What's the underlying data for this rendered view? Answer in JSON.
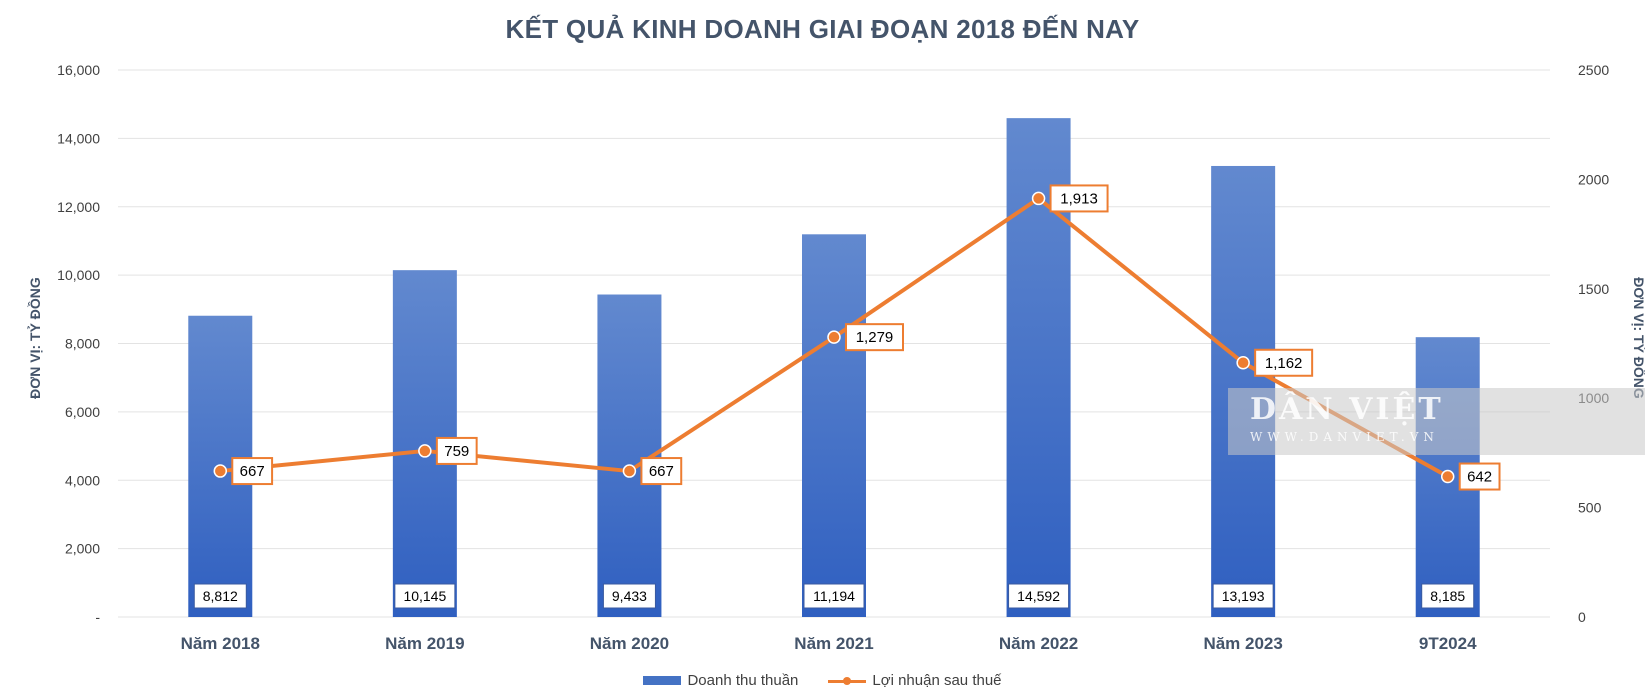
{
  "chart_data": {
    "type": "bar",
    "title": "KẾT QUẢ KINH DOANH GIAI ĐOẠN 2018 ĐẾN NAY",
    "ylabel": "ĐƠN VỊ: TỶ ĐỒNG",
    "y2label": "ĐƠN VỊ: TỶ ĐỒNG",
    "categories": [
      "Năm 2018",
      "Năm 2019",
      "Năm 2020",
      "Năm 2021",
      "Năm 2022",
      "Năm 2023",
      "9T2024"
    ],
    "series": [
      {
        "name": "Doanh thu thuần",
        "kind": "bar",
        "axis": "left",
        "color": "#4472c4",
        "values": [
          8812,
          10145,
          9433,
          11194,
          14592,
          13193,
          8185
        ],
        "labels": [
          "8,812",
          "10,145",
          "9,433",
          "11,194",
          "14,592",
          "13,193",
          "8,185"
        ]
      },
      {
        "name": "Lợi nhuận sau thuế",
        "kind": "line",
        "axis": "right",
        "color": "#ed7d31",
        "values": [
          667,
          759,
          667,
          1279,
          1913,
          1162,
          642
        ],
        "labels": [
          "667",
          "759",
          "667",
          "1,279",
          "1,913",
          "1,162",
          "642"
        ]
      }
    ],
    "ylim": [
      0,
      16000
    ],
    "y2lim": [
      0,
      2500
    ],
    "yticks": [
      0,
      2000,
      4000,
      6000,
      8000,
      10000,
      12000,
      14000,
      16000
    ],
    "yticklabels": [
      "-",
      "2,000",
      "4,000",
      "6,000",
      "8,000",
      "10,000",
      "12,000",
      "14,000",
      "16,000"
    ],
    "y2ticks": [
      0,
      500,
      1000,
      1500,
      2000,
      2500
    ],
    "y2ticklabels": [
      "0",
      "500",
      "1000",
      "1500",
      "2000",
      "2500"
    ],
    "grid": true,
    "legend": "bottom"
  },
  "watermark": {
    "main": "DÂN VIỆT",
    "sub": "WWW.DANVIET.VN"
  }
}
